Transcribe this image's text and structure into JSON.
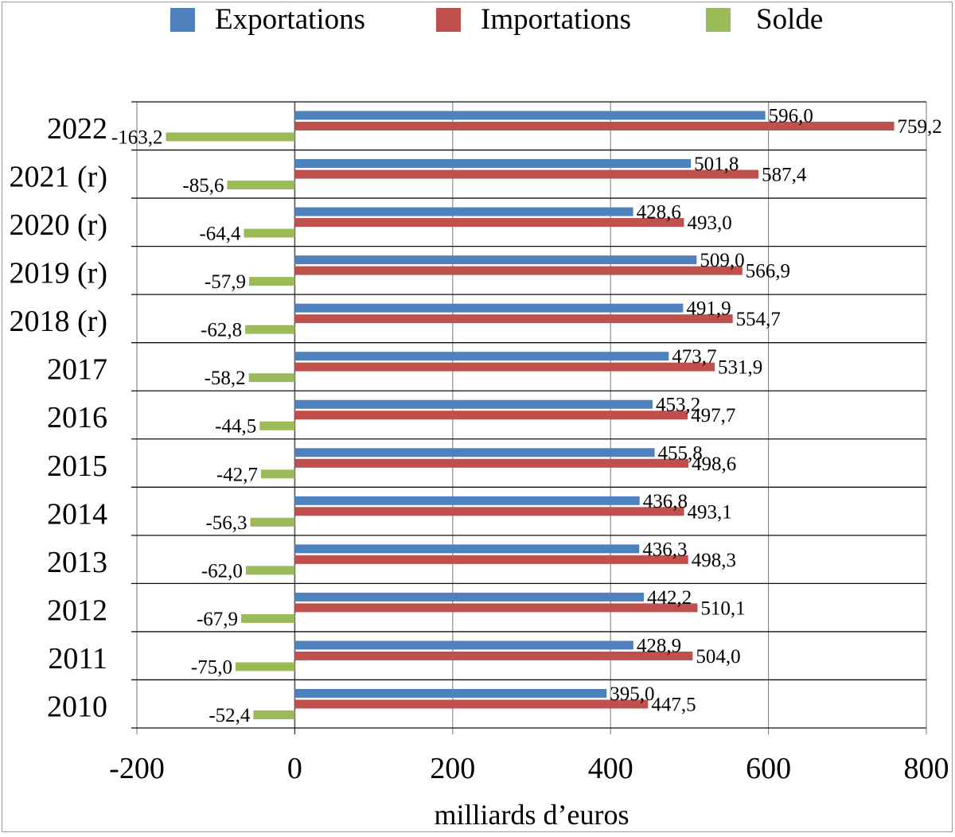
{
  "chart_data": {
    "type": "bar",
    "orientation": "horizontal",
    "categories": [
      "2022",
      "2021 (r)",
      "2020 (r)",
      "2019 (r)",
      "2018 (r)",
      "2017",
      "2016",
      "2015",
      "2014",
      "2013",
      "2012",
      "2011",
      "2010"
    ],
    "series": [
      {
        "name": "Exportations",
        "color": "#4F81BD",
        "values": [
          596.0,
          501.8,
          428.6,
          509.0,
          491.9,
          473.7,
          453.2,
          455.8,
          436.8,
          436.3,
          442.2,
          428.9,
          395.0
        ],
        "labels": [
          "596,0",
          "501,8",
          "428,6",
          "509,0",
          "491,9",
          "473,7",
          "453,2",
          "455,8",
          "436,8",
          "436,3",
          "442,2",
          "428,9",
          "395,0"
        ]
      },
      {
        "name": "Importations",
        "color": "#C0504D",
        "values": [
          759.2,
          587.4,
          493.0,
          566.9,
          554.7,
          531.9,
          497.7,
          498.6,
          493.1,
          498.3,
          510.1,
          504.0,
          447.5
        ],
        "labels": [
          "759,2",
          "587,4",
          "493,0",
          "566,9",
          "554,7",
          "531,9",
          "497,7",
          "498,6",
          "493,1",
          "498,3",
          "510,1",
          "504,0",
          "447,5"
        ]
      },
      {
        "name": "Solde",
        "color": "#9BBB59",
        "values": [
          -163.2,
          -85.6,
          -64.4,
          -57.9,
          -62.8,
          -58.2,
          -44.5,
          -42.7,
          -56.3,
          -62.0,
          -67.9,
          -75.0,
          -52.4
        ],
        "labels": [
          "-163,2",
          "-85,6",
          "-64,4",
          "-57,9",
          "-62,8",
          "-58,2",
          "-44,5",
          "-42,7",
          "-56,3",
          "-62,0",
          "-67,9",
          "-75,0",
          "-52,4"
        ]
      }
    ],
    "xlabel": "milliards d’euros",
    "xlim": [
      -200,
      800
    ],
    "xticks": [
      -200,
      0,
      200,
      400,
      600,
      800
    ],
    "grid": true,
    "legend": "top"
  }
}
